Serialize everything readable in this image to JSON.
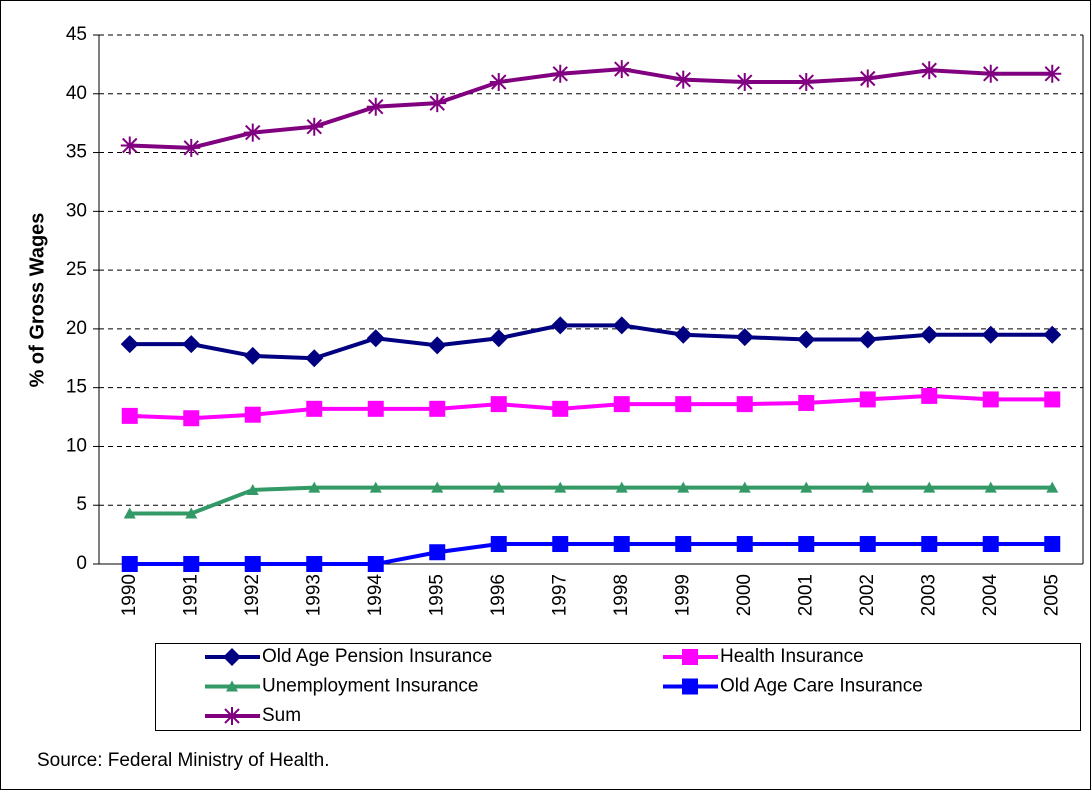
{
  "chart_data": {
    "type": "line",
    "y_label": "% of Gross Wages",
    "source": "Source: Federal Ministry of Health.",
    "categories": [
      "1990",
      "1991",
      "1992",
      "1993",
      "1994",
      "1995",
      "1996",
      "1997",
      "1998",
      "1999",
      "2000",
      "2001",
      "2002",
      "2003",
      "2004",
      "2005"
    ],
    "series": [
      {
        "name": "Old Age Pension Insurance",
        "color": "#000080",
        "marker": "diamond",
        "values": [
          18.7,
          18.7,
          17.7,
          17.5,
          19.2,
          18.6,
          19.2,
          20.3,
          20.3,
          19.5,
          19.3,
          19.1,
          19.1,
          19.5,
          19.5,
          19.5
        ]
      },
      {
        "name": "Health Insurance",
        "color": "#ff00ff",
        "marker": "square",
        "values": [
          12.6,
          12.4,
          12.7,
          13.2,
          13.2,
          13.2,
          13.6,
          13.2,
          13.6,
          13.6,
          13.6,
          13.7,
          14.0,
          14.3,
          14.0,
          14.0
        ]
      },
      {
        "name": "Unemployment Insurance",
        "color": "#339966",
        "marker": "triangle",
        "values": [
          4.3,
          4.3,
          6.3,
          6.5,
          6.5,
          6.5,
          6.5,
          6.5,
          6.5,
          6.5,
          6.5,
          6.5,
          6.5,
          6.5,
          6.5,
          6.5
        ]
      },
      {
        "name": "Old Age Care Insurance",
        "color": "#0000ff",
        "marker": "square",
        "values": [
          0,
          0,
          0,
          0,
          0,
          1.0,
          1.7,
          1.7,
          1.7,
          1.7,
          1.7,
          1.7,
          1.7,
          1.7,
          1.7,
          1.7
        ]
      },
      {
        "name": "Sum",
        "color": "#800080",
        "marker": "asterisk",
        "values": [
          35.6,
          35.4,
          36.7,
          37.2,
          38.9,
          39.2,
          41.0,
          41.7,
          42.1,
          41.2,
          41.0,
          41.0,
          41.3,
          42.0,
          41.7,
          41.7
        ]
      }
    ],
    "ylim": [
      0,
      45
    ],
    "yticks": [
      0,
      5,
      10,
      15,
      20,
      25,
      30,
      35,
      40,
      45
    ],
    "grid": true,
    "legend": "bottom"
  }
}
